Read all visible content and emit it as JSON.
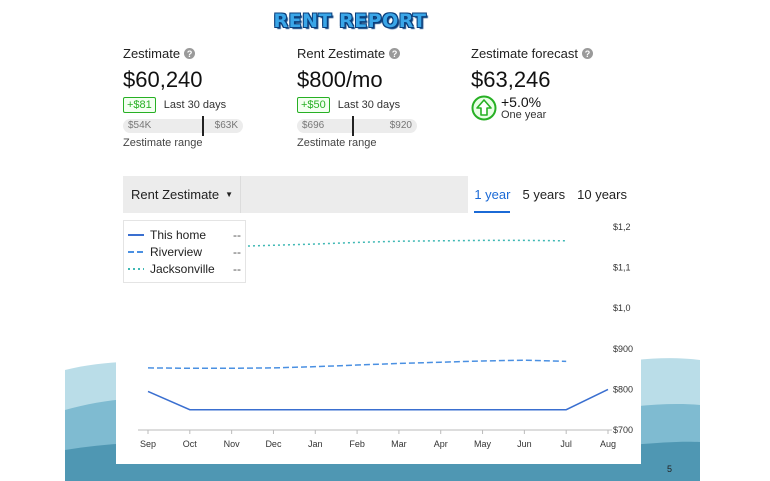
{
  "slide": {
    "title": "RENT REPORT",
    "page_number": "5"
  },
  "metrics": [
    {
      "label": "Zestimate",
      "value": "$60,240",
      "change": "+$81",
      "period": "Last 30 days",
      "range_low": "$54K",
      "range_high": "$63K",
      "range_fraction": 0.66,
      "range_caption": "Zestimate range"
    },
    {
      "label": "Rent Zestimate",
      "value": "$800/mo",
      "change": "+$50",
      "period": "Last 30 days",
      "range_low": "$696",
      "range_high": "$920",
      "range_fraction": 0.46,
      "range_caption": "Zestimate range"
    },
    {
      "label": "Zestimate forecast",
      "value": "$63,246",
      "forecast_change": "+5.0%",
      "forecast_period": "One year"
    }
  ],
  "toolbar": {
    "dropdown_label": "Rent Zestimate",
    "range_tabs": [
      "1 year",
      "5 years",
      "10 years"
    ],
    "active_tab": "1 year"
  },
  "colors": {
    "accent": "#1b6ad6",
    "positive": "#27b024",
    "line_this_home": "#3a6fd0",
    "line_riverview": "#4a90e2",
    "line_jacksonville": "#3fb8b4"
  },
  "chart_data": {
    "type": "line",
    "x": [
      "Sep",
      "Oct",
      "Nov",
      "Dec",
      "Jan",
      "Feb",
      "Mar",
      "Apr",
      "May",
      "Jun",
      "Jul",
      "Aug"
    ],
    "y_ticks": [
      "$1,2",
      "$1,1",
      "$1,0",
      "$900",
      "$800",
      "$700"
    ],
    "y_tick_values": [
      1200,
      1100,
      1000,
      900,
      800,
      700
    ],
    "ylim": [
      700,
      1200
    ],
    "grid": false,
    "legend_position": "top-left",
    "series": [
      {
        "name": "This home",
        "legend_value": "--",
        "style": "solid",
        "color": "#3a6fd0",
        "x": [
          "Sep",
          "Oct",
          "Nov",
          "Dec",
          "Jan",
          "Feb",
          "Mar",
          "Apr",
          "May",
          "Jun",
          "Jul",
          "Aug"
        ],
        "values": [
          795,
          750,
          750,
          750,
          750,
          750,
          750,
          750,
          750,
          750,
          750,
          800
        ]
      },
      {
        "name": "Riverview",
        "legend_value": "--",
        "style": "dashed",
        "color": "#4a90e2",
        "x": [
          "Sep",
          "Oct",
          "Nov",
          "Dec",
          "Jan",
          "Feb",
          "Mar",
          "Apr",
          "May",
          "Jun",
          "Jul"
        ],
        "values": [
          853,
          852,
          852,
          853,
          856,
          860,
          864,
          867,
          870,
          872,
          869
        ]
      },
      {
        "name": "Jacksonville",
        "legend_value": "--",
        "style": "dotted",
        "color": "#3fb8b4",
        "x": [
          "Sep",
          "Oct",
          "Nov",
          "Dec",
          "Jan",
          "Feb",
          "Mar",
          "Apr",
          "May",
          "Jun",
          "Jul"
        ],
        "values": [
          1148,
          1150,
          1152,
          1155,
          1158,
          1162,
          1165,
          1166,
          1167,
          1167,
          1166
        ]
      }
    ]
  }
}
